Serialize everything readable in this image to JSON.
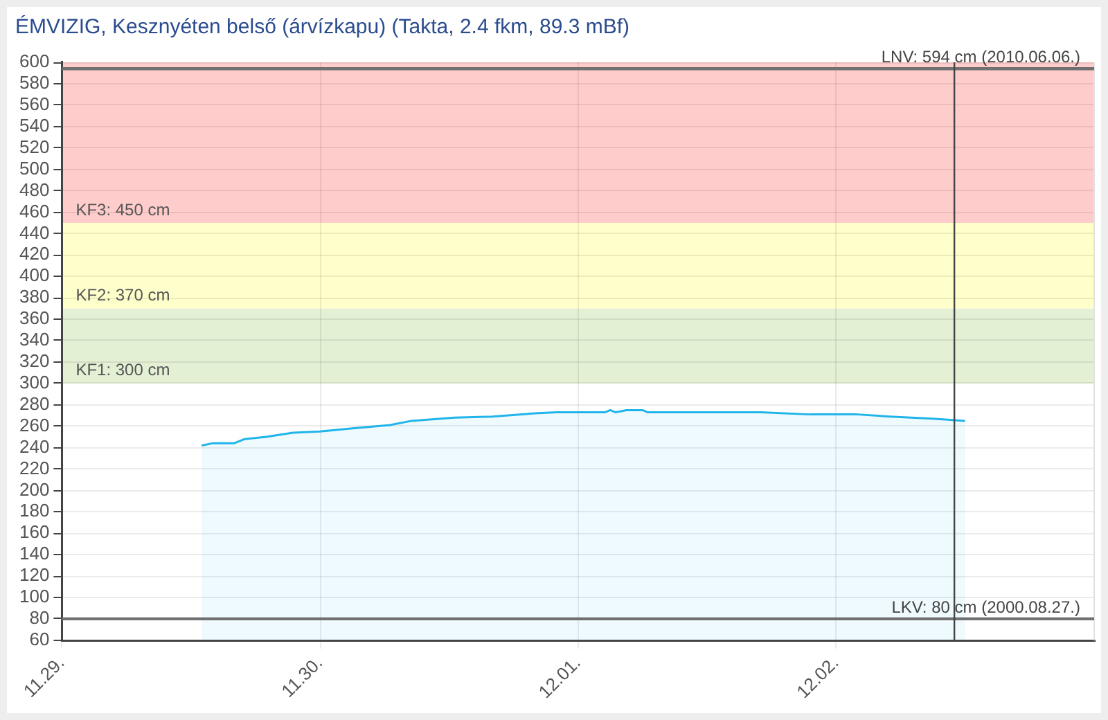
{
  "chart_data": {
    "type": "area",
    "title": "ÉMVIZIG, Kesznyéten belső (árvízkapu) (Takta, 2.4 fkm, 89.3 mBf)",
    "x": [
      "--11-29T13:00",
      "--11-29T14:00",
      "--11-29T16:00",
      "--11-29T17:00",
      "--11-29T19:00",
      "--11-29T21:30",
      "--11-30T00:00",
      "--11-30T03:00",
      "--11-30T06:30",
      "--11-30T08:30",
      "--11-30T12:30",
      "--11-30T16:00",
      "--11-30T20:00",
      "--11-30T22:00",
      "--12-01T02:30",
      "--12-01T03:00",
      "--12-01T03:30",
      "--12-01T04:30",
      "--12-01T06:00",
      "--12-01T06:30",
      "--12-01T17:00",
      "--12-01T21:30",
      "--12-02T02:00",
      "--12-02T05:00",
      "--12-02T09:00",
      "--12-02T12:00"
    ],
    "values": [
      242,
      244,
      244,
      248,
      250,
      254,
      255,
      258,
      261,
      265,
      268,
      269,
      272,
      273,
      273,
      275,
      273,
      275,
      275,
      273,
      273,
      271,
      271,
      269,
      267,
      265
    ],
    "color": "#1fb5ea",
    "xlim": [
      "--11-29",
      "--12-03"
    ],
    "xticks": [
      {
        "value": "--11-29",
        "label": "11.29."
      },
      {
        "value": "--11-30",
        "label": "11.30."
      },
      {
        "value": "--12-01",
        "label": "12.01."
      },
      {
        "value": "--12-02",
        "label": "12.02."
      }
    ],
    "ylim": [
      60,
      600
    ],
    "yticks": [
      60,
      80,
      100,
      120,
      140,
      160,
      180,
      200,
      220,
      240,
      260,
      280,
      300,
      320,
      340,
      360,
      380,
      400,
      420,
      440,
      460,
      480,
      500,
      520,
      540,
      560,
      580,
      600
    ],
    "grid": true,
    "bands": [
      {
        "axis": "y",
        "from": 300,
        "to": 370,
        "label": "KF1: 300 cm",
        "color": "#e3f0d4"
      },
      {
        "axis": "y",
        "from": 370,
        "to": 450,
        "label": "KF2: 370 cm",
        "color": "#ffffcc"
      },
      {
        "axis": "y",
        "from": 450,
        "to": 600,
        "label": "KF3: 450 cm",
        "color": "#ffcccc"
      }
    ],
    "ref_lines": [
      {
        "axis": "y",
        "value": 594,
        "label": "LNV: 594 cm (2010.06.06.)",
        "color": "#707070"
      },
      {
        "axis": "y",
        "value": 80,
        "label": "LKV: 80 cm (2000.08.27.)",
        "color": "#707070"
      },
      {
        "axis": "x",
        "value": "--12-02T11:00",
        "color": "#444444"
      }
    ]
  }
}
